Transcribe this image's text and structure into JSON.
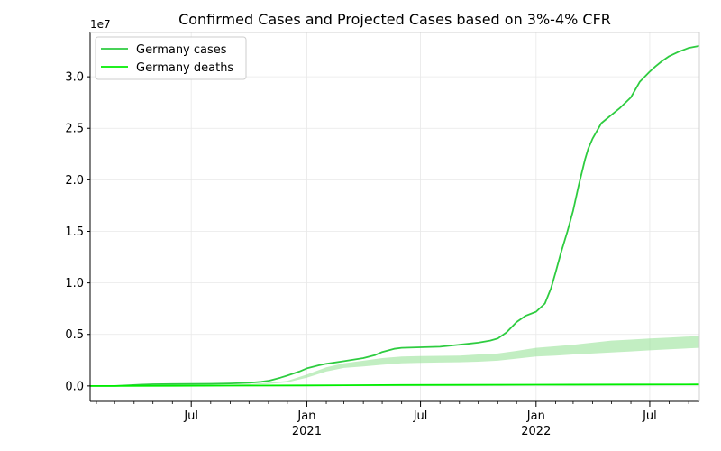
{
  "chart_data": {
    "type": "line",
    "title": "Confirmed Cases and Projected Cases based on 3%-4% CFR",
    "xlabel": "",
    "ylabel": "",
    "y_offset_label": "1e7",
    "xlim": [
      "2020-01-22",
      "2022-09-18"
    ],
    "ylim": [
      -0.15,
      3.43
    ],
    "y_unit_multiplier": 10000000,
    "grid": true,
    "legend_position": "top-left",
    "y_ticks": [
      {
        "value": 0.0,
        "label": "0.0"
      },
      {
        "value": 0.5,
        "label": "0.5"
      },
      {
        "value": 1.0,
        "label": "1.0"
      },
      {
        "value": 1.5,
        "label": "1.5"
      },
      {
        "value": 2.0,
        "label": "2.0"
      },
      {
        "value": 2.5,
        "label": "2.5"
      },
      {
        "value": 3.0,
        "label": "3.0"
      }
    ],
    "x_major_ticks": [
      {
        "date": "2020-07-01",
        "label": "Jul",
        "sublabel": ""
      },
      {
        "date": "2021-01-01",
        "label": "Jan",
        "sublabel": "2021"
      },
      {
        "date": "2021-07-01",
        "label": "Jul",
        "sublabel": ""
      },
      {
        "date": "2022-01-01",
        "label": "Jan",
        "sublabel": "2022"
      },
      {
        "date": "2022-07-01",
        "label": "Jul",
        "sublabel": ""
      }
    ],
    "x_minor_ticks": [
      "2020-02-01",
      "2020-03-01",
      "2020-04-01",
      "2020-05-01",
      "2020-06-01",
      "2020-08-01",
      "2020-09-01",
      "2020-10-01",
      "2020-11-01",
      "2020-12-01",
      "2021-02-01",
      "2021-03-01",
      "2021-04-01",
      "2021-05-01",
      "2021-06-01",
      "2021-08-01",
      "2021-09-01",
      "2021-10-01",
      "2021-11-01",
      "2021-12-01",
      "2022-02-01",
      "2022-03-01",
      "2022-04-01",
      "2022-05-01",
      "2022-06-01",
      "2022-08-01",
      "2022-09-01"
    ],
    "series": [
      {
        "name": "Germany cases",
        "color": "#2ecc40",
        "x": [
          "2020-01-22",
          "2020-03-01",
          "2020-03-20",
          "2020-04-10",
          "2020-05-01",
          "2020-06-01",
          "2020-07-01",
          "2020-08-01",
          "2020-09-01",
          "2020-10-01",
          "2020-10-20",
          "2020-11-01",
          "2020-11-20",
          "2020-12-01",
          "2020-12-20",
          "2021-01-01",
          "2021-01-20",
          "2021-02-01",
          "2021-03-01",
          "2021-04-01",
          "2021-04-20",
          "2021-05-01",
          "2021-05-20",
          "2021-06-01",
          "2021-07-01",
          "2021-08-01",
          "2021-09-01",
          "2021-10-01",
          "2021-10-20",
          "2021-11-01",
          "2021-11-15",
          "2021-12-01",
          "2021-12-15",
          "2022-01-01",
          "2022-01-15",
          "2022-01-25",
          "2022-02-01",
          "2022-02-10",
          "2022-02-20",
          "2022-03-01",
          "2022-03-10",
          "2022-03-20",
          "2022-03-25",
          "2022-04-01",
          "2022-04-15",
          "2022-05-01",
          "2022-05-15",
          "2022-06-01",
          "2022-06-15",
          "2022-07-01",
          "2022-07-10",
          "2022-07-20",
          "2022-08-01",
          "2022-08-15",
          "2022-09-01",
          "2022-09-18"
        ],
        "values": [
          0.0,
          0.0,
          0.005,
          0.012,
          0.016,
          0.018,
          0.02,
          0.021,
          0.024,
          0.03,
          0.04,
          0.05,
          0.08,
          0.1,
          0.14,
          0.17,
          0.2,
          0.215,
          0.24,
          0.27,
          0.3,
          0.33,
          0.36,
          0.37,
          0.375,
          0.38,
          0.4,
          0.42,
          0.44,
          0.46,
          0.52,
          0.62,
          0.68,
          0.72,
          0.8,
          0.95,
          1.1,
          1.3,
          1.5,
          1.7,
          1.95,
          2.2,
          2.3,
          2.4,
          2.55,
          2.63,
          2.7,
          2.8,
          2.95,
          3.05,
          3.1,
          3.15,
          3.2,
          3.24,
          3.28,
          3.3
        ]
      },
      {
        "name": "Germany deaths",
        "color": "#00ee00",
        "x": [
          "2020-01-22",
          "2020-06-01",
          "2021-01-01",
          "2021-06-01",
          "2022-01-01",
          "2022-06-01",
          "2022-09-18"
        ],
        "values": [
          0.0,
          0.001,
          0.005,
          0.0091,
          0.0115,
          0.0139,
          0.0148
        ]
      }
    ],
    "projection_band": {
      "color": "#90e090",
      "x": [
        "2020-01-22",
        "2020-03-01",
        "2020-04-10",
        "2020-06-01",
        "2020-08-01",
        "2020-10-01",
        "2020-11-01",
        "2020-12-01",
        "2021-01-01",
        "2021-02-01",
        "2021-03-01",
        "2021-04-01",
        "2021-05-01",
        "2021-06-01",
        "2021-07-01",
        "2021-08-01",
        "2021-09-01",
        "2021-10-01",
        "2021-11-01",
        "2021-12-01",
        "2022-01-01",
        "2022-02-01",
        "2022-03-01",
        "2022-04-01",
        "2022-05-01",
        "2022-06-01",
        "2022-07-01",
        "2022-08-01",
        "2022-09-18"
      ],
      "lower": [
        0.0,
        0.0,
        0.004,
        0.008,
        0.01,
        0.012,
        0.02,
        0.035,
        0.08,
        0.14,
        0.175,
        0.19,
        0.205,
        0.22,
        0.225,
        0.227,
        0.23,
        0.235,
        0.245,
        0.265,
        0.285,
        0.295,
        0.305,
        0.315,
        0.325,
        0.335,
        0.345,
        0.355,
        0.37
      ],
      "upper": [
        0.0,
        0.0,
        0.006,
        0.01,
        0.013,
        0.016,
        0.03,
        0.05,
        0.11,
        0.18,
        0.22,
        0.245,
        0.27,
        0.285,
        0.29,
        0.292,
        0.295,
        0.305,
        0.315,
        0.34,
        0.37,
        0.385,
        0.4,
        0.42,
        0.44,
        0.45,
        0.46,
        0.47,
        0.485
      ]
    }
  }
}
